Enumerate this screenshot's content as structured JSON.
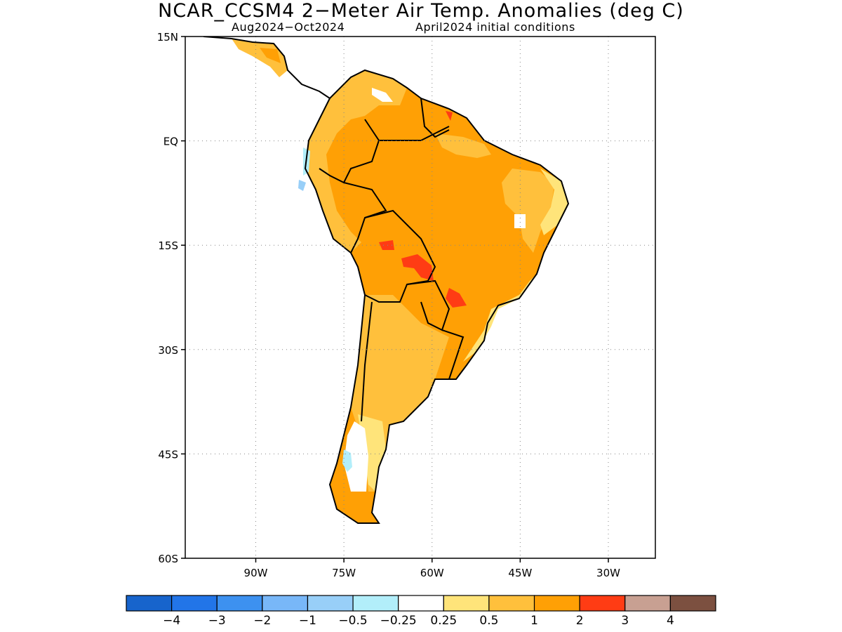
{
  "title": "NCAR_CCSM4 2−Meter Air Temp. Anomalies (deg C)",
  "subtitle_period": "Aug2024−Oct2024",
  "subtitle_init": "April2024 initial conditions",
  "map": {
    "lon_range": [
      -102,
      -22
    ],
    "lat_range": [
      -60,
      15
    ],
    "lat_ticks": [
      {
        "value": 15,
        "label": "15N"
      },
      {
        "value": 0,
        "label": "EQ"
      },
      {
        "value": -15,
        "label": "15S"
      },
      {
        "value": -30,
        "label": "30S"
      },
      {
        "value": -45,
        "label": "45S"
      },
      {
        "value": -60,
        "label": "60S"
      }
    ],
    "lon_ticks": [
      {
        "value": -90,
        "label": "90W"
      },
      {
        "value": -75,
        "label": "75W"
      },
      {
        "value": -60,
        "label": "60W"
      },
      {
        "value": -45,
        "label": "45W"
      },
      {
        "value": -30,
        "label": "30W"
      }
    ],
    "grid": "dotted"
  },
  "colorbar": {
    "colors": [
      "#1764cc",
      "#2275e8",
      "#3d91f0",
      "#78b7f8",
      "#98cff8",
      "#b2eefa",
      "#ffffff",
      "#ffe47a",
      "#ffc03c",
      "#ffa005",
      "#ff3c14",
      "#c8a092",
      "#7c5040"
    ],
    "labels": [
      "−4",
      "−3",
      "−2",
      "−1",
      "−0.5",
      "−0.25",
      "0.25",
      "0.5",
      "1",
      "2",
      "3",
      "4"
    ]
  }
}
